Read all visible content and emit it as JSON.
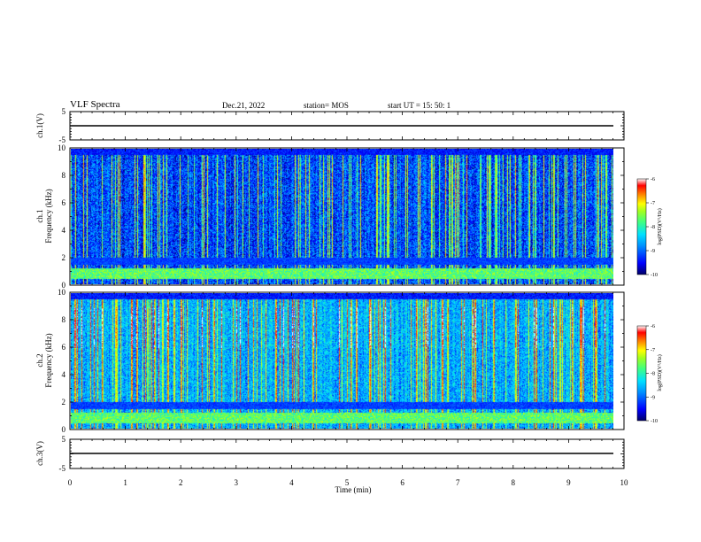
{
  "header": {
    "title": "VLF Spectra",
    "date": "Dec.21, 2022",
    "station": "station= MOS",
    "start": "start UT = 15: 50: 1"
  },
  "colors": {
    "colormap": [
      "#00007a",
      "#0000ff",
      "#0090ff",
      "#00e0ff",
      "#40ff80",
      "#a0ff20",
      "#ffff00",
      "#ff8000",
      "#ff0000",
      "#ffffff"
    ]
  },
  "chart_data": [
    {
      "type": "line",
      "name": "ch1-voltage",
      "ylabel": "ch.1(V)",
      "ylim": [
        -5,
        5
      ],
      "yticks": [
        "5",
        "-5"
      ],
      "x": [
        0,
        10
      ],
      "values": [
        0,
        0
      ]
    },
    {
      "type": "heatmap",
      "name": "ch1-spectrogram",
      "ylabel": "ch.1",
      "ylabel2": "Frequency (kHz)",
      "ylim": [
        0,
        10
      ],
      "yticks": [
        "0",
        "2",
        "4",
        "6",
        "8",
        "10"
      ],
      "colorbar": {
        "label": "log(PSD)(V²/Hz)",
        "range": [
          -10,
          -6
        ],
        "ticks": [
          "-6",
          "-7",
          "-8",
          "-9",
          "-10"
        ]
      }
    },
    {
      "type": "heatmap",
      "name": "ch2-spectrogram",
      "ylabel": "ch.2",
      "ylabel2": "Frequency (kHz)",
      "ylim": [
        0,
        10
      ],
      "yticks": [
        "0",
        "2",
        "4",
        "6",
        "8",
        "10"
      ],
      "colorbar": {
        "label": "log(PSD)(V²/Hz)",
        "range": [
          -10,
          -6
        ],
        "ticks": [
          "-6",
          "-7",
          "-8",
          "-9",
          "-10"
        ]
      }
    },
    {
      "type": "line",
      "name": "ch3-voltage",
      "ylabel": "ch.3(V)",
      "ylim": [
        -5,
        5
      ],
      "yticks": [
        "5",
        "-5"
      ],
      "x": [
        0,
        10
      ],
      "values": [
        0,
        0
      ]
    }
  ],
  "xaxis": {
    "label": "Time (min)",
    "ticks": [
      "0",
      "1",
      "2",
      "3",
      "4",
      "5",
      "6",
      "7",
      "8",
      "9",
      "10"
    ],
    "xlim": [
      0,
      10
    ],
    "data_end": 9.83
  }
}
